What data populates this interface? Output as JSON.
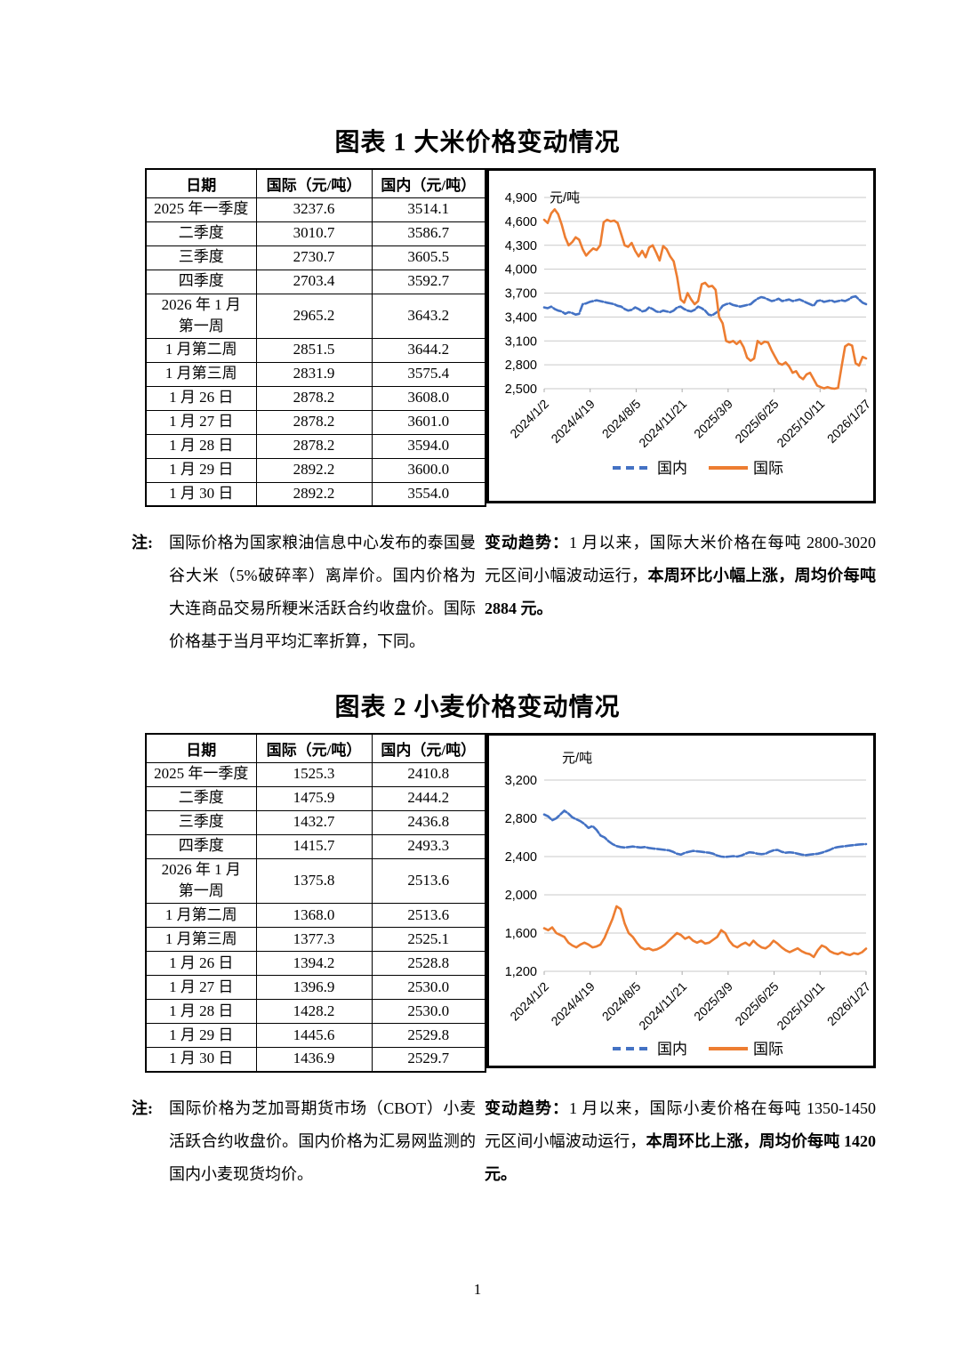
{
  "page_number": "1",
  "figure1": {
    "title": "图表 1 大米价格变动情况",
    "table": {
      "headers": [
        "日期",
        "国际（元/吨）",
        "国内（元/吨）"
      ],
      "rows": [
        [
          "2025 年一季度",
          "3237.6",
          "3514.1"
        ],
        [
          "二季度",
          "3010.7",
          "3586.7"
        ],
        [
          "三季度",
          "2730.7",
          "3605.5"
        ],
        [
          "四季度",
          "2703.4",
          "3592.7"
        ],
        [
          "2026 年 1 月\n第一周",
          "2965.2",
          "3643.2"
        ],
        [
          "1 月第二周",
          "2851.5",
          "3644.2"
        ],
        [
          "1 月第三周",
          "2831.9",
          "3575.4"
        ],
        [
          "1 月 26 日",
          "2878.2",
          "3608.0"
        ],
        [
          "1 月 27 日",
          "2878.2",
          "3601.0"
        ],
        [
          "1 月 28 日",
          "2878.2",
          "3594.0"
        ],
        [
          "1 月 29 日",
          "2892.2",
          "3600.0"
        ],
        [
          "1 月 30 日",
          "2892.2",
          "3554.0"
        ]
      ]
    },
    "note_label": "注:",
    "note_text": "国际价格为国家粮油信息中心发布的泰国曼谷大米（5%破碎率）离岸价。国内价格为大连商品交易所粳米活跃合约收盘价。国际价格基于当月平均汇率折算，下同。",
    "trend_label": "变动趋势：",
    "trend_text": "1 月以来，国际大米价格在每吨 2800-3020 元区间小幅波动运行，",
    "trend_bold": "本周环比小幅上涨，周均价每吨 2884 元。"
  },
  "figure2": {
    "title": "图表 2 小麦价格变动情况",
    "table": {
      "headers": [
        "日期",
        "国际（元/吨）",
        "国内（元/吨）"
      ],
      "rows": [
        [
          "2025 年一季度",
          "1525.3",
          "2410.8"
        ],
        [
          "二季度",
          "1475.9",
          "2444.2"
        ],
        [
          "三季度",
          "1432.7",
          "2436.8"
        ],
        [
          "四季度",
          "1415.7",
          "2493.3"
        ],
        [
          "2026 年 1 月\n第一周",
          "1375.8",
          "2513.6"
        ],
        [
          "1 月第二周",
          "1368.0",
          "2513.6"
        ],
        [
          "1 月第三周",
          "1377.3",
          "2525.1"
        ],
        [
          "1 月 26 日",
          "1394.2",
          "2528.8"
        ],
        [
          "1 月 27 日",
          "1396.9",
          "2530.0"
        ],
        [
          "1 月 28 日",
          "1428.2",
          "2530.0"
        ],
        [
          "1 月 29 日",
          "1445.6",
          "2529.8"
        ],
        [
          "1 月 30 日",
          "1436.9",
          "2529.7"
        ]
      ]
    },
    "note_label": "注:",
    "note_text": "国际价格为芝加哥期货市场（CBOT）小麦活跃合约收盘价。国内价格为汇易网监测的国内小麦现货均价。",
    "trend_label": "变动趋势：",
    "trend_text": "1 月以来，国际小麦价格在每吨 1350-1450 元区间小幅波动运行，",
    "trend_bold": "本周环比上涨，周均价每吨 1420 元。"
  },
  "chart_data": [
    {
      "type": "line",
      "title": "大米价格变动情况",
      "unit_label": "元/吨",
      "unit_position": "beside-top-tick",
      "ylim": [
        2500,
        4900
      ],
      "y_step": 300,
      "grid": true,
      "legend_position": "bottom",
      "x_tick_labels": [
        "2024/1/2",
        "2024/4/19",
        "2024/8/5",
        "2024/11/21",
        "2025/3/9",
        "2025/6/25",
        "2025/10/11",
        "2026/1/27"
      ],
      "legend": [
        {
          "key": "domestic",
          "name": "国内",
          "color": "#4472C4",
          "dash": true
        },
        {
          "key": "international",
          "name": "国际",
          "color": "#ED7D31",
          "dash": false
        }
      ],
      "series": [
        {
          "key": "domestic",
          "name": "国内",
          "color": "#4472C4",
          "dash": "9 2.5",
          "values": [
            3520,
            3510,
            3530,
            3500,
            3480,
            3470,
            3440,
            3460,
            3450,
            3430,
            3440,
            3560,
            3570,
            3590,
            3600,
            3610,
            3600,
            3590,
            3580,
            3570,
            3560,
            3540,
            3530,
            3500,
            3480,
            3490,
            3520,
            3500,
            3470,
            3480,
            3520,
            3500,
            3470,
            3460,
            3480,
            3470,
            3460,
            3480,
            3520,
            3530,
            3500,
            3480,
            3470,
            3490,
            3530,
            3510,
            3480,
            3430,
            3420,
            3450,
            3480,
            3540,
            3560,
            3570,
            3550,
            3540,
            3530,
            3540,
            3550,
            3560,
            3600,
            3630,
            3650,
            3640,
            3620,
            3600,
            3610,
            3630,
            3600,
            3610,
            3620,
            3600,
            3610,
            3620,
            3600,
            3580,
            3560,
            3540,
            3600,
            3610,
            3590,
            3600,
            3610,
            3590,
            3600,
            3610,
            3600,
            3620,
            3650,
            3660,
            3620,
            3580,
            3560
          ]
        },
        {
          "key": "international",
          "name": "国际",
          "color": "#ED7D31",
          "dash": "",
          "values": [
            4620,
            4580,
            4700,
            4750,
            4690,
            4560,
            4400,
            4300,
            4340,
            4400,
            4370,
            4250,
            4170,
            4220,
            4260,
            4240,
            4300,
            4590,
            4620,
            4600,
            4610,
            4580,
            4440,
            4300,
            4280,
            4330,
            4230,
            4160,
            4230,
            4150,
            4270,
            4300,
            4210,
            4110,
            4290,
            4250,
            4160,
            4100,
            3900,
            3620,
            3580,
            3700,
            3620,
            3560,
            3600,
            3810,
            3830,
            3780,
            3790,
            3740,
            3400,
            3320,
            3100,
            3080,
            3100,
            3060,
            3100,
            3020,
            2890,
            2850,
            2880,
            3100,
            3060,
            3090,
            3080,
            2980,
            2900,
            2820,
            2800,
            2830,
            2780,
            2700,
            2720,
            2650,
            2620,
            2680,
            2700,
            2620,
            2540,
            2520,
            2505,
            2520,
            2505,
            2500,
            2510,
            2780,
            3030,
            3060,
            3040,
            2820,
            2790,
            2900,
            2880
          ]
        }
      ]
    },
    {
      "type": "line",
      "title": "小麦价格变动情况",
      "unit_label": "元/吨",
      "unit_position": "above-plot",
      "ylim": [
        1200,
        3200
      ],
      "y_step": 400,
      "grid": true,
      "legend_position": "bottom",
      "x_tick_labels": [
        "2024/1/2",
        "2024/4/19",
        "2024/8/5",
        "2024/11/21",
        "2025/3/9",
        "2025/6/25",
        "2025/10/11",
        "2026/1/27"
      ],
      "legend": [
        {
          "key": "domestic",
          "name": "国内",
          "color": "#4472C4",
          "dash": true
        },
        {
          "key": "international",
          "name": "国际",
          "color": "#ED7D31",
          "dash": false
        }
      ],
      "series": [
        {
          "key": "domestic",
          "name": "国内",
          "color": "#4472C4",
          "dash": "9 2.5",
          "values": [
            2840,
            2820,
            2780,
            2800,
            2840,
            2880,
            2850,
            2810,
            2790,
            2770,
            2740,
            2700,
            2720,
            2680,
            2620,
            2600,
            2560,
            2530,
            2510,
            2500,
            2495,
            2500,
            2505,
            2500,
            2495,
            2500,
            2490,
            2485,
            2480,
            2475,
            2470,
            2465,
            2450,
            2430,
            2420,
            2440,
            2450,
            2460,
            2455,
            2450,
            2445,
            2440,
            2430,
            2410,
            2400,
            2395,
            2400,
            2405,
            2400,
            2410,
            2430,
            2445,
            2440,
            2430,
            2425,
            2430,
            2450,
            2465,
            2470,
            2450,
            2440,
            2445,
            2440,
            2430,
            2420,
            2415,
            2420,
            2425,
            2430,
            2440,
            2455,
            2470,
            2490,
            2500,
            2505,
            2510,
            2515,
            2520,
            2525,
            2528,
            2530
          ]
        },
        {
          "key": "international",
          "name": "国际",
          "color": "#ED7D31",
          "dash": "",
          "values": [
            1650,
            1630,
            1660,
            1600,
            1580,
            1560,
            1500,
            1470,
            1450,
            1480,
            1500,
            1480,
            1450,
            1460,
            1480,
            1550,
            1650,
            1750,
            1880,
            1850,
            1700,
            1600,
            1560,
            1500,
            1450,
            1430,
            1440,
            1420,
            1430,
            1450,
            1480,
            1520,
            1560,
            1600,
            1580,
            1540,
            1560,
            1520,
            1500,
            1520,
            1490,
            1500,
            1530,
            1560,
            1630,
            1600,
            1520,
            1470,
            1450,
            1480,
            1500,
            1470,
            1520,
            1480,
            1450,
            1440,
            1470,
            1520,
            1490,
            1450,
            1420,
            1400,
            1420,
            1440,
            1410,
            1390,
            1380,
            1350,
            1420,
            1470,
            1450,
            1410,
            1390,
            1380,
            1400,
            1380,
            1370,
            1390,
            1380,
            1400,
            1437
          ]
        }
      ]
    }
  ]
}
